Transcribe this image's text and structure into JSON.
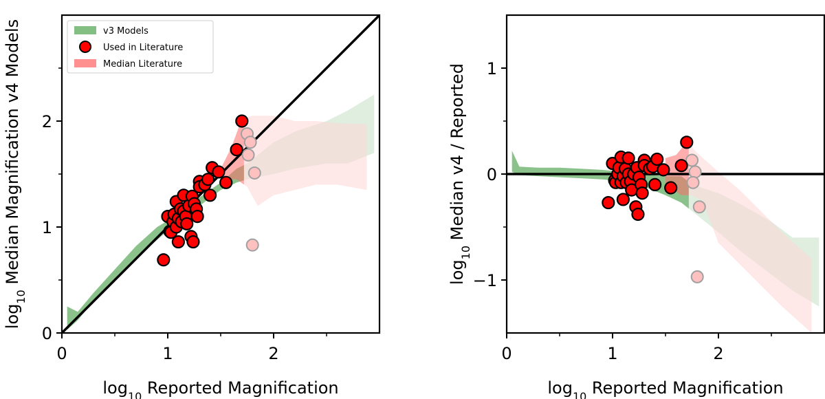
{
  "colors": {
    "v3_band": "#5aa85a",
    "lit_band": "#ff6b6b",
    "used_fill": "#ff0000",
    "faded_fill": "#ffc0c0",
    "faded_edge": "#a0a0a0",
    "identity_line": "#000000"
  },
  "chart_data": [
    {
      "type": "scatter",
      "xlabel": {
        "prefix": "log",
        "sub": "10",
        "rest": " Reported Magnification"
      },
      "ylabel": {
        "prefix": "log",
        "sub": "10",
        "rest": " Median Magnification v4 Models"
      },
      "xlim": [
        0,
        3.0
      ],
      "ylim": [
        0,
        3.0
      ],
      "x_ticks": [
        0,
        1,
        2
      ],
      "y_ticks": [
        0,
        1,
        2
      ],
      "x_minor_ticks": [
        0.5,
        1.5,
        2.5
      ],
      "y_minor_ticks": [
        0.5,
        1.5,
        2.5
      ],
      "legend": {
        "placement": "upper-left",
        "entries": [
          {
            "label": "v3 Models",
            "kind": "v3-band"
          },
          {
            "label": "Used in Literature",
            "kind": "used-point"
          },
          {
            "label": "Median Literature",
            "kind": "lit-band"
          }
        ]
      },
      "reference_line": {
        "type": "identity",
        "from": [
          0,
          0
        ],
        "to": [
          3.0,
          3.0
        ]
      },
      "v3_band": {
        "upper": [
          [
            0.05,
            0.25
          ],
          [
            0.15,
            0.2
          ],
          [
            0.3,
            0.38
          ],
          [
            0.5,
            0.6
          ],
          [
            0.7,
            0.82
          ],
          [
            0.9,
            1.0
          ],
          [
            1.1,
            1.12
          ],
          [
            1.3,
            1.28
          ],
          [
            1.5,
            1.42
          ],
          [
            1.65,
            1.55
          ],
          [
            1.75,
            1.6
          ],
          [
            2.0,
            1.8
          ],
          [
            2.2,
            1.9
          ],
          [
            2.5,
            2.0
          ],
          [
            2.7,
            2.1
          ],
          [
            2.95,
            2.25
          ]
        ],
        "lower": [
          [
            2.95,
            1.7
          ],
          [
            2.7,
            1.6
          ],
          [
            2.5,
            1.6
          ],
          [
            2.2,
            1.55
          ],
          [
            2.0,
            1.5
          ],
          [
            1.75,
            1.45
          ],
          [
            1.65,
            1.42
          ],
          [
            1.5,
            1.35
          ],
          [
            1.3,
            1.2
          ],
          [
            1.1,
            1.05
          ],
          [
            0.9,
            0.88
          ],
          [
            0.7,
            0.7
          ],
          [
            0.5,
            0.5
          ],
          [
            0.3,
            0.3
          ],
          [
            0.15,
            0.12
          ],
          [
            0.05,
            0.03
          ]
        ]
      },
      "lit_band": {
        "upper": [
          [
            1.5,
            1.55
          ],
          [
            1.6,
            1.75
          ],
          [
            1.7,
            2.02
          ],
          [
            1.8,
            2.05
          ],
          [
            2.0,
            2.05
          ],
          [
            2.2,
            2.0
          ],
          [
            2.4,
            2.0
          ],
          [
            2.6,
            1.98
          ],
          [
            2.88,
            1.97
          ]
        ],
        "lower": [
          [
            2.88,
            1.35
          ],
          [
            2.6,
            1.4
          ],
          [
            2.4,
            1.4
          ],
          [
            2.2,
            1.35
          ],
          [
            2.0,
            1.3
          ],
          [
            1.85,
            1.2
          ],
          [
            1.75,
            1.38
          ],
          [
            1.65,
            1.45
          ],
          [
            1.5,
            1.45
          ]
        ]
      },
      "used_points": [
        [
          0.96,
          0.69
        ],
        [
          1.0,
          1.1
        ],
        [
          1.02,
          0.96
        ],
        [
          1.03,
          0.95
        ],
        [
          1.05,
          1.05
        ],
        [
          1.06,
          1.12
        ],
        [
          1.08,
          1.24
        ],
        [
          1.08,
          1.0
        ],
        [
          1.1,
          1.08
        ],
        [
          1.1,
          0.86
        ],
        [
          1.12,
          1.17
        ],
        [
          1.13,
          1.05
        ],
        [
          1.15,
          1.3
        ],
        [
          1.15,
          1.15
        ],
        [
          1.17,
          1.1
        ],
        [
          1.18,
          1.03
        ],
        [
          1.2,
          1.2
        ],
        [
          1.22,
          0.91
        ],
        [
          1.23,
          1.29
        ],
        [
          1.24,
          0.86
        ],
        [
          1.25,
          1.22
        ],
        [
          1.27,
          1.17
        ],
        [
          1.28,
          1.1
        ],
        [
          1.3,
          1.43
        ],
        [
          1.3,
          1.38
        ],
        [
          1.35,
          1.4
        ],
        [
          1.38,
          1.45
        ],
        [
          1.4,
          1.3
        ],
        [
          1.42,
          1.56
        ],
        [
          1.48,
          1.52
        ],
        [
          1.55,
          1.42
        ],
        [
          1.65,
          1.73
        ],
        [
          1.7,
          2.0
        ]
      ],
      "faded_points": [
        [
          1.75,
          1.88
        ],
        [
          1.78,
          1.8
        ],
        [
          1.76,
          1.68
        ],
        [
          1.82,
          1.51
        ],
        [
          1.8,
          0.83
        ]
      ]
    },
    {
      "type": "scatter",
      "xlabel": {
        "prefix": "log",
        "sub": "10",
        "rest": " Reported Magnification"
      },
      "ylabel": {
        "prefix": "log",
        "sub": "10",
        "rest": " Median v4 / Reported"
      },
      "xlim": [
        0,
        3.0
      ],
      "ylim": [
        -1.5,
        1.5
      ],
      "x_ticks": [
        0,
        1,
        2
      ],
      "y_ticks": [
        -1,
        0,
        1
      ],
      "y_tick_labels": [
        "−1",
        "0",
        "1"
      ],
      "x_minor_ticks": [
        0.5,
        1.5,
        2.5
      ],
      "y_minor_ticks": [
        -0.5,
        0.5
      ],
      "reference_line": {
        "type": "horizontal",
        "y": 0
      },
      "v3_band": {
        "upper": [
          [
            0.05,
            0.22
          ],
          [
            0.12,
            0.07
          ],
          [
            0.3,
            0.06
          ],
          [
            0.5,
            0.06
          ],
          [
            0.7,
            0.05
          ],
          [
            0.9,
            0.04
          ],
          [
            1.1,
            0.02
          ],
          [
            1.3,
            0.0
          ],
          [
            1.5,
            -0.02
          ],
          [
            1.65,
            -0.02
          ],
          [
            1.75,
            -0.1
          ],
          [
            2.0,
            -0.18
          ],
          [
            2.2,
            -0.28
          ],
          [
            2.5,
            -0.45
          ],
          [
            2.7,
            -0.6
          ],
          [
            2.95,
            -0.6
          ]
        ],
        "lower": [
          [
            2.95,
            -1.25
          ],
          [
            2.7,
            -1.1
          ],
          [
            2.5,
            -0.95
          ],
          [
            2.2,
            -0.72
          ],
          [
            2.0,
            -0.55
          ],
          [
            1.75,
            -0.35
          ],
          [
            1.65,
            -0.27
          ],
          [
            1.5,
            -0.2
          ],
          [
            1.3,
            -0.12
          ],
          [
            1.1,
            -0.07
          ],
          [
            0.9,
            -0.05
          ],
          [
            0.7,
            -0.04
          ],
          [
            0.5,
            -0.03
          ],
          [
            0.3,
            -0.02
          ],
          [
            0.12,
            -0.01
          ],
          [
            0.05,
            0.02
          ]
        ]
      },
      "lit_band": {
        "upper": [
          [
            1.5,
            0.15
          ],
          [
            1.6,
            0.18
          ],
          [
            1.7,
            0.3
          ],
          [
            1.8,
            0.2
          ],
          [
            2.0,
            0.02
          ],
          [
            2.2,
            -0.15
          ],
          [
            2.4,
            -0.35
          ],
          [
            2.6,
            -0.55
          ],
          [
            2.88,
            -0.8
          ]
        ],
        "lower": [
          [
            2.88,
            -1.5
          ],
          [
            2.6,
            -1.25
          ],
          [
            2.4,
            -1.05
          ],
          [
            2.2,
            -0.85
          ],
          [
            2.0,
            -0.65
          ],
          [
            1.85,
            -0.25
          ],
          [
            1.75,
            -0.2
          ],
          [
            1.65,
            -0.2
          ],
          [
            1.5,
            -0.1
          ]
        ]
      },
      "used_points": [
        [
          0.96,
          -0.27
        ],
        [
          1.0,
          0.1
        ],
        [
          1.02,
          -0.06
        ],
        [
          1.03,
          -0.08
        ],
        [
          1.05,
          0.0
        ],
        [
          1.06,
          0.06
        ],
        [
          1.08,
          0.16
        ],
        [
          1.08,
          -0.08
        ],
        [
          1.1,
          -0.02
        ],
        [
          1.1,
          -0.24
        ],
        [
          1.12,
          0.05
        ],
        [
          1.13,
          -0.08
        ],
        [
          1.15,
          0.15
        ],
        [
          1.15,
          0.0
        ],
        [
          1.17,
          -0.07
        ],
        [
          1.18,
          -0.15
        ],
        [
          1.2,
          0.0
        ],
        [
          1.22,
          -0.31
        ],
        [
          1.23,
          0.06
        ],
        [
          1.24,
          -0.38
        ],
        [
          1.25,
          -0.03
        ],
        [
          1.27,
          -0.1
        ],
        [
          1.28,
          -0.18
        ],
        [
          1.3,
          0.13
        ],
        [
          1.3,
          0.08
        ],
        [
          1.35,
          0.05
        ],
        [
          1.38,
          0.07
        ],
        [
          1.4,
          -0.1
        ],
        [
          1.42,
          0.14
        ],
        [
          1.48,
          0.04
        ],
        [
          1.55,
          -0.13
        ],
        [
          1.65,
          0.08
        ],
        [
          1.7,
          0.3
        ]
      ],
      "faded_points": [
        [
          1.75,
          0.13
        ],
        [
          1.78,
          0.02
        ],
        [
          1.76,
          -0.08
        ],
        [
          1.82,
          -0.31
        ],
        [
          1.8,
          -0.97
        ]
      ]
    }
  ]
}
